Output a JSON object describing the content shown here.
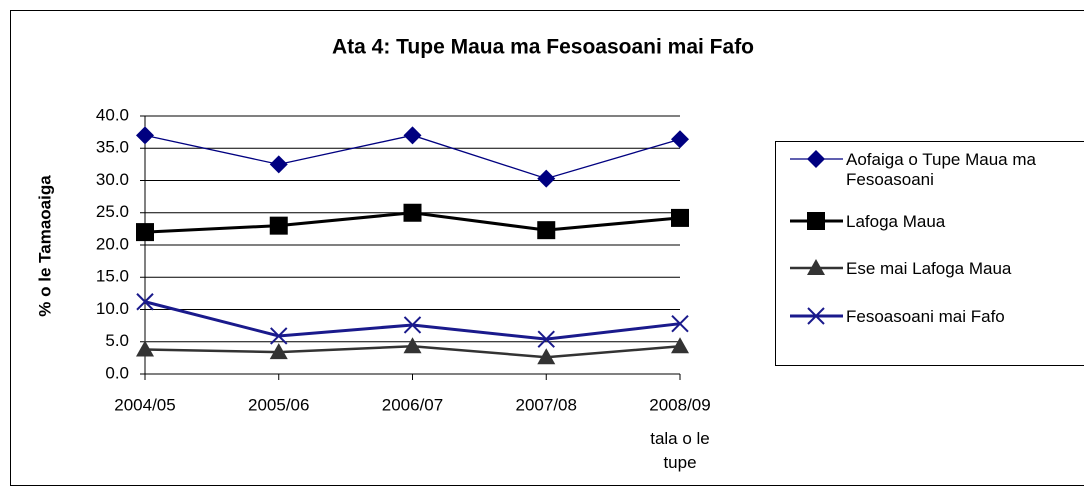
{
  "chart_data": {
    "type": "line",
    "title": "Ata 4: Tupe Maua ma Fesoasoani mai Fafo",
    "y_label": "% o le Tamaoaiga",
    "x_label": "tala o le tupe",
    "categories": [
      "2004/05",
      "2005/06",
      "2006/07",
      "2007/08",
      "2008/09"
    ],
    "series": [
      {
        "name": "Aofaiga o Tupe Maua ma Fesoasoani",
        "color": "#000080",
        "marker": "diamond",
        "values": [
          37.0,
          32.5,
          37.0,
          30.3,
          36.4
        ]
      },
      {
        "name": "Lafoga Maua",
        "color": "#000000",
        "marker": "square",
        "values": [
          22.0,
          23.0,
          25.0,
          22.3,
          24.2
        ]
      },
      {
        "name": "Ese mai Lafoga Maua",
        "color": "#333333",
        "marker": "triangle",
        "values": [
          3.8,
          3.4,
          4.3,
          2.6,
          4.3
        ]
      },
      {
        "name": "Fesoasoani mai Fafo",
        "color": "#1a1a8c",
        "marker": "x",
        "values": [
          11.2,
          5.9,
          7.6,
          5.4,
          7.8
        ]
      }
    ],
    "ylim": [
      0,
      40
    ],
    "yticks": [
      {
        "value": 0,
        "label": "0.0"
      },
      {
        "value": 5,
        "label": "5.0"
      },
      {
        "value": 10,
        "label": "10.0"
      },
      {
        "value": 15,
        "label": "15.0"
      },
      {
        "value": 20,
        "label": "20.0"
      },
      {
        "value": 25,
        "label": "25.0"
      },
      {
        "value": 30,
        "label": "30.0"
      },
      {
        "value": 35,
        "label": "35.0"
      },
      {
        "value": 40,
        "label": "40.0"
      }
    ],
    "grid": true,
    "legend": "right"
  }
}
